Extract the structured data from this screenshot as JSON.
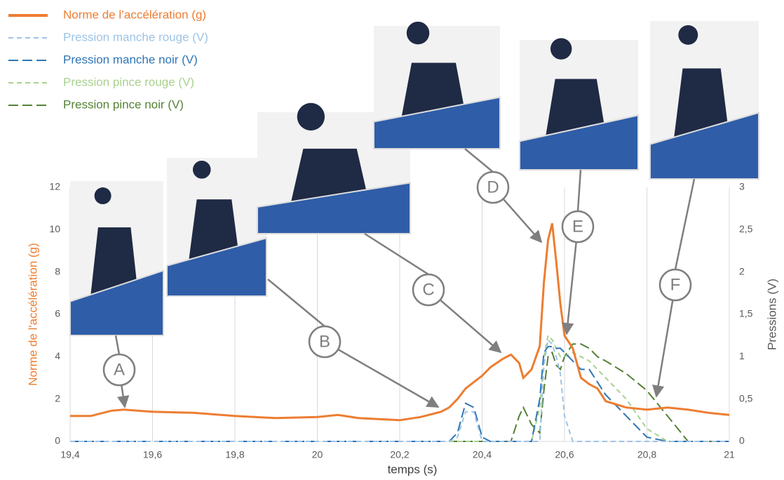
{
  "chart_data": {
    "type": "line",
    "x_label": "temps (s)",
    "y_label": "Norme de l'accélération (g)",
    "y2_label": "Pressions (V)",
    "xlim": [
      19.4,
      21
    ],
    "xticks": [
      {
        "value": 19.4,
        "label": "19,4"
      },
      {
        "value": 19.6,
        "label": "19,6"
      },
      {
        "value": 19.8,
        "label": "19,8"
      },
      20,
      {
        "value": 20.2,
        "label": "20,2"
      },
      {
        "value": 20.4,
        "label": "20,4"
      },
      {
        "value": 20.6,
        "label": "20,6"
      },
      {
        "value": 20.8,
        "label": "20,8"
      },
      21
    ],
    "ylim": [
      0,
      12
    ],
    "yticks": [
      0,
      2,
      4,
      6,
      8,
      10,
      12
    ],
    "y2lim": [
      0,
      3
    ],
    "y2ticks": [
      0,
      {
        "value": 0.5,
        "label": "0,5"
      },
      1,
      {
        "value": 1.5,
        "label": "1,5"
      },
      2,
      {
        "value": 2.5,
        "label": "2,5"
      },
      3
    ],
    "grid": "x",
    "legend": "top-left",
    "x": [
      19.4,
      19.45,
      19.5,
      19.53,
      19.6,
      19.7,
      19.8,
      19.9,
      20.0,
      20.05,
      20.1,
      20.2,
      20.25,
      20.3,
      20.32,
      20.34,
      20.36,
      20.38,
      20.4,
      20.42,
      20.45,
      20.47,
      20.49,
      20.5,
      20.52,
      20.54,
      20.55,
      20.56,
      20.57,
      20.58,
      20.59,
      20.6,
      20.62,
      20.64,
      20.66,
      20.68,
      20.7,
      20.75,
      20.8,
      20.85,
      20.9,
      20.95,
      21
    ],
    "series": [
      {
        "name": "Norme de l’accélération (g)",
        "color": "#ed7d31",
        "style": "solid",
        "values": [
          1.2,
          1.2,
          1.45,
          1.5,
          1.4,
          1.35,
          1.2,
          1.1,
          1.15,
          1.25,
          1.1,
          1.0,
          1.15,
          1.4,
          1.6,
          2.0,
          2.5,
          2.8,
          3.1,
          3.5,
          3.9,
          4.1,
          3.7,
          3.0,
          3.4,
          4.5,
          7.5,
          9.5,
          10.3,
          8.5,
          6.5,
          5.0,
          4.4,
          3.0,
          2.7,
          2.5,
          1.9,
          1.6,
          1.5,
          1.6,
          1.5,
          1.35,
          1.25
        ]
      },
      {
        "name": "Pression manche rouge (V)",
        "color": "#9dc3e6",
        "style": "short",
        "axis": "y2",
        "values": [
          0,
          0,
          0,
          0,
          0,
          0,
          0,
          0,
          0,
          0,
          0,
          0,
          0,
          0,
          0,
          0.05,
          0.35,
          0.35,
          0,
          0,
          0,
          0,
          0,
          0,
          0,
          0,
          0.9,
          1.2,
          1.15,
          1.0,
          0.8,
          0.3,
          0,
          0,
          0,
          0,
          0,
          0,
          0,
          0,
          0,
          0,
          0
        ]
      },
      {
        "name": "Pression manche noir (V)",
        "color": "#2e75b6",
        "style": "long",
        "axis": "y2",
        "values": [
          0,
          0,
          0,
          0,
          0,
          0,
          0,
          0,
          0,
          0,
          0,
          0,
          0,
          0,
          0,
          0.1,
          0.45,
          0.4,
          0.05,
          0,
          0,
          0,
          0,
          0,
          0,
          0.5,
          1.05,
          1.12,
          1.12,
          1.1,
          1.1,
          1.05,
          0.95,
          0.85,
          0.85,
          0.7,
          0.55,
          0.3,
          0.05,
          0,
          0,
          0,
          0
        ]
      },
      {
        "name": "Pression pince rouge (V)",
        "color": "#a9d18e",
        "style": "short",
        "axis": "y2",
        "values": [
          0,
          0,
          0,
          0,
          0,
          0,
          0,
          0,
          0,
          0,
          0,
          0,
          0,
          0,
          0,
          0,
          0,
          0,
          0,
          0,
          0,
          0,
          0,
          0,
          0,
          0.4,
          1.0,
          1.25,
          1.2,
          1.1,
          1.0,
          1.0,
          1.05,
          1.0,
          0.95,
          0.85,
          0.75,
          0.5,
          0.15,
          0,
          0,
          0,
          0
        ]
      },
      {
        "name": "Pression pince noir (V)",
        "color": "#548235",
        "style": "long",
        "axis": "y2",
        "values": [
          0,
          0,
          0,
          0,
          0,
          0,
          0,
          0,
          0,
          0,
          0,
          0,
          0,
          0,
          0,
          0,
          0,
          0,
          0,
          0,
          0,
          0,
          0.3,
          0.4,
          0.2,
          0.1,
          0.6,
          1.0,
          1.05,
          0.9,
          0.85,
          1.0,
          1.15,
          1.15,
          1.1,
          1.0,
          0.95,
          0.8,
          0.6,
          0.3,
          0,
          0,
          0
        ]
      }
    ],
    "annotations": [
      {
        "text": "A"
      },
      {
        "text": "B"
      },
      {
        "text": "C"
      },
      {
        "text": "D"
      },
      {
        "text": "E"
      },
      {
        "text": "F"
      }
    ]
  }
}
